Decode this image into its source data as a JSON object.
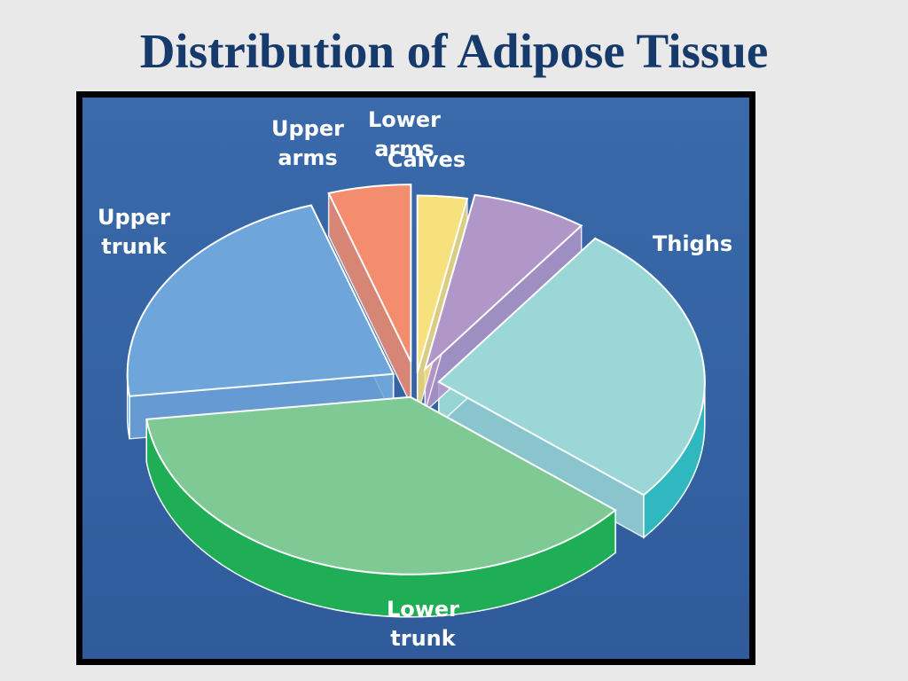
{
  "slide": {
    "title": "Distribution of Adipose Tissue"
  },
  "chart_data": {
    "type": "pie",
    "title": "Distribution of Adipose Tissue",
    "exploded": true,
    "three_d": true,
    "background": "#3664a6",
    "slices": [
      {
        "label_lines": [
          "Lower",
          "arms"
        ],
        "value": 3,
        "color": "#f7e07e",
        "side": "#e0c24e"
      },
      {
        "label_lines": [
          "Calves"
        ],
        "value": 7,
        "color": "#b196c8",
        "side": "#8c63ad"
      },
      {
        "label_lines": [
          "Thighs"
        ],
        "value": 26,
        "color": "#9ad7d6",
        "side": "#2fb8bf"
      },
      {
        "label_lines": [
          "Lower",
          "trunk"
        ],
        "value": 37,
        "color": "#7fc995",
        "side": "#1fae55"
      },
      {
        "label_lines": [
          "Upper",
          "trunk"
        ],
        "value": 22,
        "color": "#6ea6db",
        "side": "#1d7cc6"
      },
      {
        "label_lines": [
          "Upper",
          "arms"
        ],
        "value": 5,
        "color": "#f48c6e",
        "side": "#e2342d"
      }
    ]
  }
}
